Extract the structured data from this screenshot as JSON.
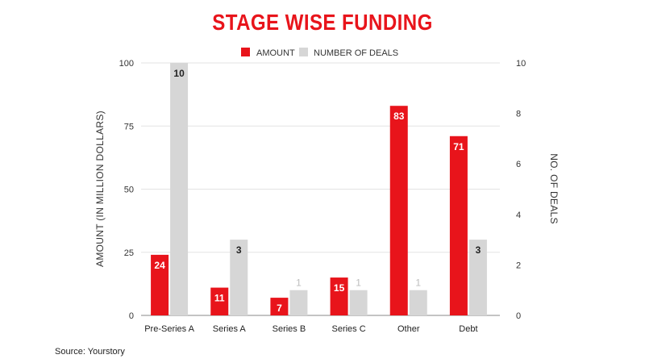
{
  "header": {
    "title": "STAGE WISE FUNDING"
  },
  "footer": {
    "source": "Source: Yourstory"
  },
  "colors": {
    "amount": "#e8141b",
    "deals": "#d6d6d6",
    "title": "#e8141b"
  },
  "chart_data": {
    "type": "bar",
    "title": "STAGE WISE FUNDING",
    "categories": [
      "Pre-Series A",
      "Series A",
      "Series B",
      "Series C",
      "Other",
      "Debt"
    ],
    "series": [
      {
        "name": "AMOUNT",
        "axis": "left",
        "values": [
          24,
          11,
          7,
          15,
          83,
          71
        ]
      },
      {
        "name": "NUMBER OF DEALS",
        "axis": "right",
        "values": [
          10,
          3,
          1,
          1,
          1,
          3
        ]
      }
    ],
    "ylabel": "AMOUNT (IN MILLION DOLLARS)",
    "ylabel_right": "NO. OF DEALS",
    "xlabel": "",
    "ylim": [
      0,
      100
    ],
    "ylim_right": [
      0,
      10
    ],
    "yticks": [
      "0",
      "25",
      "50",
      "75",
      "100"
    ],
    "yticks_right": [
      "0",
      "2",
      "4",
      "6",
      "8",
      "10"
    ],
    "legend_position": "top-center",
    "grid": true
  }
}
